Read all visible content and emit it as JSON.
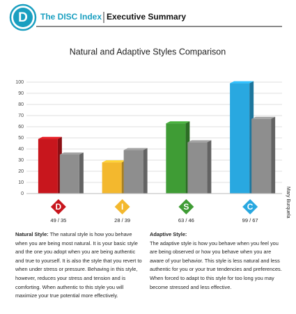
{
  "header": {
    "logo": "D",
    "title": "The DISC Index",
    "subtitle": "Executive Summary"
  },
  "chart_data": {
    "type": "bar",
    "title": "Natural and Adaptive Styles Comparison",
    "categories": [
      "D",
      "I",
      "S",
      "C"
    ],
    "category_labels": [
      "49 / 35",
      "28 / 39",
      "63 / 46",
      "99 / 67"
    ],
    "series": [
      {
        "colors": [
          "#c8161d",
          "#f3b82e",
          "#3f9c35",
          "#29a8e0"
        ],
        "values": [
          49,
          28,
          63,
          99
        ]
      },
      {
        "color": "#8e8e8e",
        "values": [
          35,
          39,
          46,
          67
        ]
      }
    ],
    "ylim": [
      0,
      100
    ],
    "yticks": [
      0,
      10,
      20,
      30,
      40,
      50,
      60,
      70,
      80,
      90,
      100
    ],
    "grid": true
  },
  "side_name": "Mary Burquela",
  "natural": {
    "heading": "Natural Style:",
    "text": "The natural style is how you behave when you are being  most natural. It is your basic style and the one you adopt when you are being authentic and true to yourself.  It is also the style that you revert to when under stress or pressure. Behaving in this style, however, reduces your stress and tension and is comforting. When authentic to this style you will maximize your true potential more effectively."
  },
  "adaptive": {
    "heading": "Adaptive Style:",
    "text": "The adaptive style is how you behave when you feel you are being observed or how you behave when you are aware of your behavior. This style is less natural and less authentic for you or your true tendencies and preferences. When forced to adapt to this style for too long you may become stressed and less effective."
  }
}
